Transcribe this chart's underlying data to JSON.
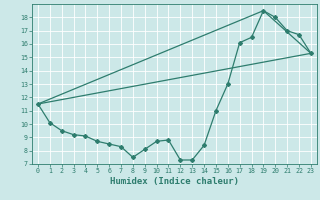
{
  "xlabel": "Humidex (Indice chaleur)",
  "bg_color": "#cce8e8",
  "grid_color": "#ffffff",
  "line_color": "#2e7d6e",
  "xlim": [
    -0.5,
    23.5
  ],
  "ylim": [
    7,
    19.0
  ],
  "yticks": [
    7,
    8,
    9,
    10,
    11,
    12,
    13,
    14,
    15,
    16,
    17,
    18
  ],
  "xticks": [
    0,
    1,
    2,
    3,
    4,
    5,
    6,
    7,
    8,
    9,
    10,
    11,
    12,
    13,
    14,
    15,
    16,
    17,
    18,
    19,
    20,
    21,
    22,
    23
  ],
  "line1_x": [
    0,
    1,
    2,
    3,
    4,
    5,
    6,
    7,
    8,
    9,
    10,
    11,
    12,
    13,
    14,
    15,
    16,
    17,
    18,
    19,
    20,
    21,
    22,
    23
  ],
  "line1_y": [
    11.5,
    10.1,
    9.5,
    9.2,
    9.1,
    8.7,
    8.5,
    8.3,
    7.5,
    8.1,
    8.7,
    8.8,
    7.3,
    7.3,
    8.4,
    11.0,
    13.0,
    16.1,
    16.5,
    18.5,
    18.0,
    17.0,
    16.7,
    15.3
  ],
  "line2_x": [
    0,
    23
  ],
  "line2_y": [
    11.5,
    15.3
  ],
  "line3_x": [
    0,
    19,
    23
  ],
  "line3_y": [
    11.5,
    18.5,
    15.3
  ]
}
